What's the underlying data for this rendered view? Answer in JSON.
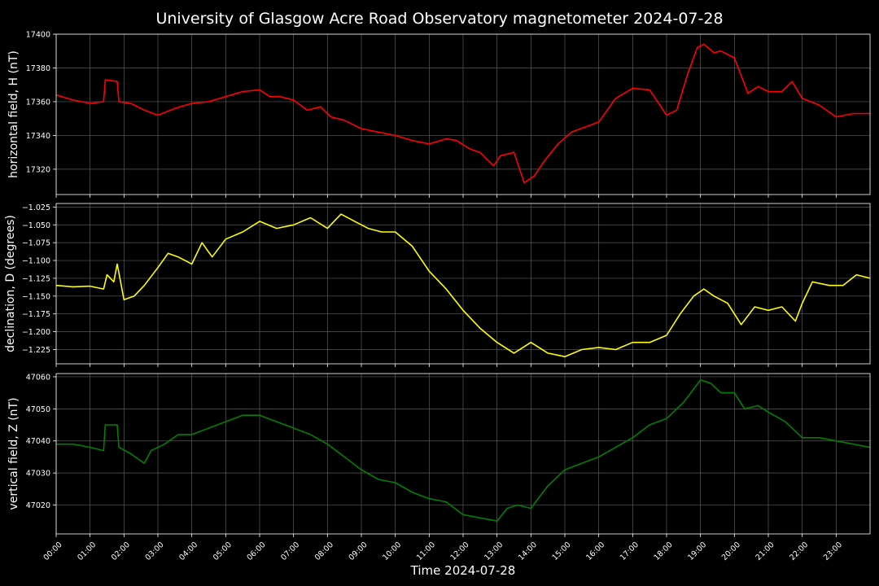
{
  "title": "University of Glasgow Acre Road Observatory magnetometer 2024-07-28",
  "xlabel": "Time 2024-07-28",
  "x_ticks": [
    "00:00",
    "01:00",
    "02:00",
    "03:00",
    "04:00",
    "05:00",
    "06:00",
    "07:00",
    "08:00",
    "09:00",
    "10:00",
    "11:00",
    "12:00",
    "13:00",
    "14:00",
    "15:00",
    "16:00",
    "17:00",
    "18:00",
    "19:00",
    "20:00",
    "21:00",
    "22:00",
    "23:00"
  ],
  "colors": {
    "background": "#000000",
    "grid": "#5a5a5a",
    "text": "#ffffff"
  },
  "chart_data": [
    {
      "type": "line",
      "ylabel": "horizontal field, H (nT)",
      "color": "#ff0000",
      "xlim": [
        0,
        24
      ],
      "ylim": [
        17305,
        17400
      ],
      "y_ticks": [
        17320,
        17340,
        17360,
        17380,
        17400
      ],
      "y_tick_labels": [
        "17320",
        "17340",
        "17360",
        "17380",
        "17400"
      ],
      "grid": true,
      "series": [
        {
          "x": [
            0,
            0.5,
            1.0,
            1.4,
            1.45,
            1.8,
            1.85,
            2.2,
            2.6,
            3.0,
            3.5,
            4.0,
            4.5,
            5.0,
            5.5,
            6.0,
            6.3,
            6.6,
            7.0,
            7.4,
            7.8,
            8.1,
            8.5,
            9.0,
            9.5,
            10.0,
            10.5,
            11.0,
            11.5,
            11.8,
            12.2,
            12.5,
            12.9,
            13.1,
            13.5,
            13.8,
            14.1,
            14.4,
            14.8,
            15.2,
            15.6,
            16.0,
            16.5,
            17.0,
            17.5,
            18.0,
            18.3,
            18.6,
            18.9,
            19.1,
            19.4,
            19.6,
            20.0,
            20.4,
            20.7,
            21.0,
            21.4,
            21.7,
            22.0,
            22.5,
            23.0,
            23.5,
            24.0
          ],
          "y": [
            17364,
            17361,
            17359,
            17360,
            17373,
            17372,
            17360,
            17359,
            17355,
            17352,
            17356,
            17359,
            17360,
            17363,
            17366,
            17367,
            17363,
            17363,
            17361,
            17355,
            17357,
            17351,
            17349,
            17344,
            17342,
            17340,
            17337,
            17335,
            17338,
            17337,
            17332,
            17330,
            17322,
            17328,
            17330,
            17312,
            17316,
            17325,
            17335,
            17342,
            17345,
            17348,
            17362,
            17368,
            17367,
            17352,
            17355,
            17375,
            17392,
            17394,
            17389,
            17390,
            17386,
            17365,
            17369,
            17366,
            17366,
            17372,
            17362,
            17358,
            17351,
            17353,
            17353
          ]
        }
      ]
    },
    {
      "type": "line",
      "ylabel": "declination, D (degrees)",
      "color": "#ffff00",
      "xlim": [
        0,
        24
      ],
      "ylim": [
        -1.245,
        -1.02
      ],
      "y_ticks": [
        -1.225,
        -1.2,
        -1.175,
        -1.15,
        -1.125,
        -1.1,
        -1.075,
        -1.05,
        -1.025
      ],
      "y_tick_labels": [
        "−1.225",
        "−1.200",
        "−1.175",
        "−1.150",
        "−1.125",
        "−1.100",
        "−1.075",
        "−1.050",
        "−1.025"
      ],
      "grid": true,
      "series": [
        {
          "x": [
            0,
            0.5,
            1.0,
            1.4,
            1.5,
            1.7,
            1.8,
            2.0,
            2.3,
            2.6,
            3.0,
            3.3,
            3.6,
            4.0,
            4.3,
            4.6,
            5.0,
            5.5,
            6.0,
            6.5,
            7.0,
            7.5,
            8.0,
            8.4,
            8.8,
            9.2,
            9.6,
            10.0,
            10.5,
            11.0,
            11.5,
            12.0,
            12.5,
            13.0,
            13.5,
            14.0,
            14.5,
            15.0,
            15.5,
            16.0,
            16.5,
            17.0,
            17.5,
            18.0,
            18.4,
            18.8,
            19.1,
            19.4,
            19.8,
            20.2,
            20.6,
            21.0,
            21.4,
            21.8,
            22.0,
            22.3,
            22.8,
            23.2,
            23.6,
            24.0
          ],
          "y": [
            -1.135,
            -1.137,
            -1.136,
            -1.14,
            -1.12,
            -1.13,
            -1.105,
            -1.155,
            -1.15,
            -1.135,
            -1.11,
            -1.09,
            -1.095,
            -1.105,
            -1.075,
            -1.095,
            -1.07,
            -1.06,
            -1.045,
            -1.055,
            -1.05,
            -1.04,
            -1.055,
            -1.035,
            -1.045,
            -1.055,
            -1.06,
            -1.06,
            -1.08,
            -1.115,
            -1.14,
            -1.17,
            -1.195,
            -1.215,
            -1.23,
            -1.215,
            -1.23,
            -1.235,
            -1.225,
            -1.222,
            -1.225,
            -1.215,
            -1.215,
            -1.205,
            -1.175,
            -1.15,
            -1.14,
            -1.15,
            -1.16,
            -1.19,
            -1.165,
            -1.17,
            -1.165,
            -1.185,
            -1.16,
            -1.13,
            -1.135,
            -1.135,
            -1.12,
            -1.125
          ]
        }
      ]
    },
    {
      "type": "line",
      "ylabel": "vertical field, Z (nT)",
      "color": "#008000",
      "xlim": [
        0,
        24
      ],
      "ylim": [
        47011,
        47061
      ],
      "y_ticks": [
        47020,
        47030,
        47040,
        47050,
        47060
      ],
      "y_tick_labels": [
        "47020",
        "47030",
        "47040",
        "47050",
        "47060"
      ],
      "grid": true,
      "series": [
        {
          "x": [
            0,
            0.5,
            1.0,
            1.4,
            1.45,
            1.8,
            1.85,
            2.2,
            2.6,
            2.8,
            3.2,
            3.6,
            4.0,
            4.5,
            5.0,
            5.5,
            6.0,
            6.5,
            7.0,
            7.5,
            8.0,
            8.5,
            9.0,
            9.5,
            10.0,
            10.5,
            11.0,
            11.5,
            12.0,
            12.5,
            13.0,
            13.3,
            13.6,
            14.0,
            14.5,
            15.0,
            15.5,
            16.0,
            16.5,
            17.0,
            17.5,
            18.0,
            18.5,
            19.0,
            19.3,
            19.6,
            20.0,
            20.3,
            20.7,
            21.0,
            21.5,
            22.0,
            22.5,
            23.0,
            23.5,
            24.0
          ],
          "y": [
            47039,
            47039,
            47038,
            47037,
            47045,
            47045,
            47038,
            47036,
            47033,
            47037,
            47039,
            47042,
            47042,
            47044,
            47046,
            47048,
            47048,
            47046,
            47044,
            47042,
            47039,
            47035,
            47031,
            47028,
            47027,
            47024,
            47022,
            47021,
            47017,
            47016,
            47015,
            47019,
            47020,
            47019,
            47026,
            47031,
            47033,
            47035,
            47038,
            47041,
            47045,
            47047,
            47052,
            47059,
            47058,
            47055,
            47055,
            47050,
            47051,
            47049,
            47046,
            47041,
            47041,
            47040,
            47039,
            47038
          ]
        }
      ]
    }
  ]
}
